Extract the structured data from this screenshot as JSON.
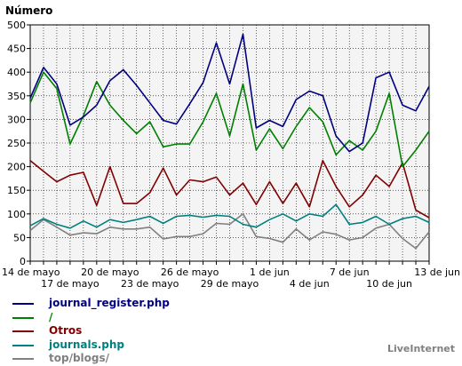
{
  "chart_data": {
    "type": "line",
    "title": "",
    "xlabel": "",
    "ylabel": "Número",
    "ylim": [
      0,
      500
    ],
    "yticks": [
      0,
      50,
      100,
      150,
      200,
      250,
      300,
      350,
      400,
      450,
      500
    ],
    "grid": true,
    "legend_position": "bottom-left",
    "xtick_labels": [
      {
        "index": 0,
        "label": "14 de mayo"
      },
      {
        "index": 3,
        "label": "17 de mayo"
      },
      {
        "index": 6,
        "label": "20 de mayo"
      },
      {
        "index": 9,
        "label": "23 de mayo"
      },
      {
        "index": 12,
        "label": "26 de mayo"
      },
      {
        "index": 15,
        "label": "29 de mayo"
      },
      {
        "index": 18,
        "label": "1 de jun"
      },
      {
        "index": 21,
        "label": "4 de jun"
      },
      {
        "index": 24,
        "label": "7 de jun"
      },
      {
        "index": 27,
        "label": "10 de jun"
      },
      {
        "index": 30,
        "label": "13 de jun"
      }
    ],
    "x_count": 31,
    "series": [
      {
        "name": "journal_register.php",
        "color": "#000080",
        "values": [
          345,
          410,
          375,
          288,
          305,
          330,
          382,
          405,
          372,
          335,
          298,
          290,
          333,
          378,
          462,
          375,
          480,
          282,
          298,
          285,
          342,
          360,
          350,
          265,
          232,
          250,
          388,
          400,
          330,
          318,
          370
        ]
      },
      {
        "name": "/",
        "color": "#008000",
        "values": [
          335,
          400,
          365,
          248,
          308,
          380,
          330,
          298,
          270,
          295,
          242,
          248,
          248,
          295,
          355,
          265,
          375,
          235,
          280,
          238,
          285,
          325,
          295,
          225,
          255,
          235,
          275,
          355,
          200,
          235,
          275
        ]
      },
      {
        "name": "Otros",
        "color": "#800000",
        "values": [
          213,
          190,
          168,
          182,
          188,
          118,
          200,
          122,
          122,
          145,
          197,
          140,
          172,
          168,
          178,
          140,
          165,
          120,
          168,
          122,
          165,
          115,
          213,
          158,
          115,
          140,
          182,
          158,
          208,
          108,
          92
        ]
      },
      {
        "name": "journals.php",
        "color": "#008080",
        "values": [
          75,
          90,
          78,
          70,
          85,
          72,
          88,
          82,
          88,
          95,
          80,
          95,
          97,
          93,
          97,
          95,
          78,
          72,
          88,
          100,
          85,
          100,
          95,
          120,
          78,
          82,
          95,
          78,
          90,
          95,
          82
        ]
      },
      {
        "name": "top/blogs/",
        "color": "#808080",
        "values": [
          65,
          88,
          72,
          55,
          60,
          58,
          72,
          68,
          68,
          72,
          47,
          52,
          52,
          58,
          80,
          78,
          100,
          52,
          48,
          40,
          68,
          45,
          62,
          57,
          45,
          50,
          70,
          78,
          48,
          27,
          62
        ]
      }
    ]
  },
  "credit": "LiveInternet"
}
